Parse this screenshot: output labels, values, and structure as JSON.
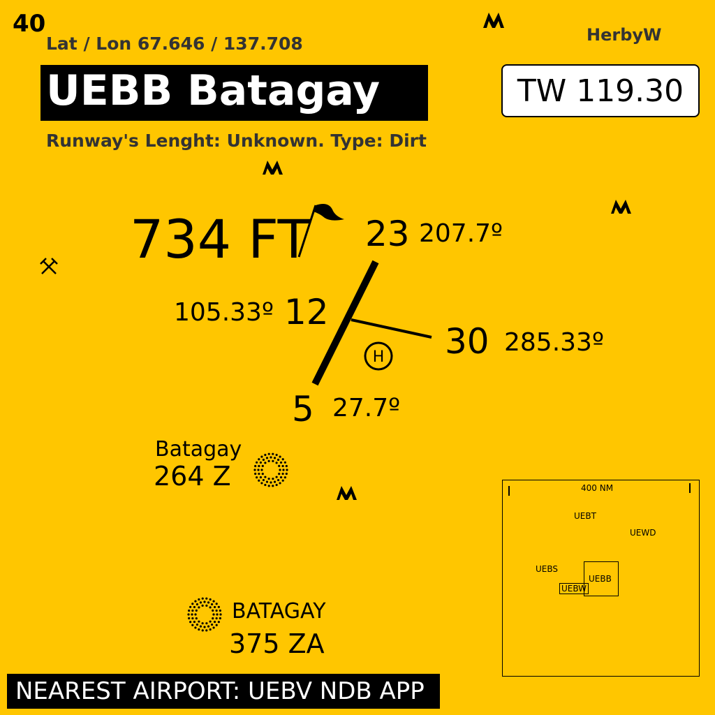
{
  "page_number": "40",
  "lat_lon": "Lat / Lon 67.646 / 137.708",
  "author": "HerbyW",
  "airport_title": "UEBB Batagay",
  "tower_freq": "TW 119.30",
  "runway_info": "Runway's Lenght: Unknown. Type: Dirt",
  "elevation": "734 FT",
  "runways": {
    "r23": {
      "label": "23",
      "heading": "207.7º"
    },
    "r5": {
      "label": "5",
      "heading": "27.7º"
    },
    "r12": {
      "label": "12",
      "heading": "105.33º"
    },
    "r30": {
      "label": "30",
      "heading": "285.33º"
    }
  },
  "ndbs": [
    {
      "name": "Batagay",
      "freq": "264 Z"
    },
    {
      "name": "BATAGAY",
      "freq": "375 ZA"
    }
  ],
  "nearest": "NEAREST  AIRPORT: UEBV NDB APP",
  "inset": {
    "scale": "400 NM",
    "airports": [
      "UEBT",
      "UEWD",
      "UEBS",
      "UEBB",
      "UEBW"
    ]
  },
  "icons": [
    "mountain-icon",
    "mine-icon",
    "windsock-icon",
    "helipad-icon",
    "ndb-icon"
  ]
}
